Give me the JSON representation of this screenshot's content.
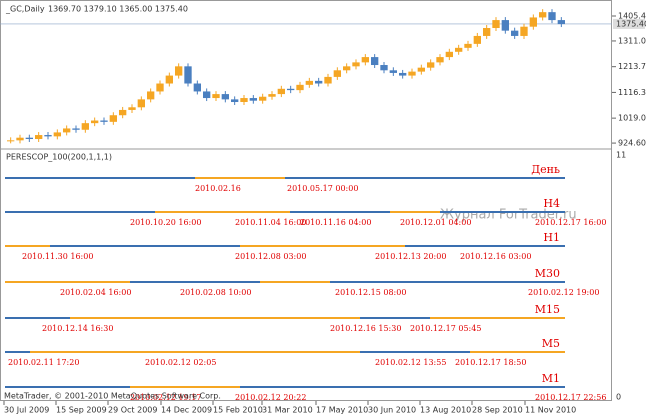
{
  "header": {
    "symbol": "_GC,Daily",
    "ohlc": "1369.70 1379.10 1365.00 1375.40"
  },
  "chart_data": {
    "type": "candles",
    "ylim": [
      906,
      1466
    ],
    "yticks": [
      {
        "value": 1405.45,
        "label": "1405.45"
      },
      {
        "value": 1311.05,
        "label": "1311.05"
      },
      {
        "value": 1213.7,
        "label": "1213.70"
      },
      {
        "value": 1116.35,
        "label": "1116.35"
      },
      {
        "value": 1019,
        "label": "1019.00"
      },
      {
        "value": 924.6,
        "label": "924.60"
      }
    ],
    "current": {
      "value": 1375.4,
      "label": "1375.40"
    },
    "values": [
      935,
      945,
      940,
      955,
      950,
      965,
      980,
      975,
      1000,
      1010,
      1005,
      1030,
      1050,
      1060,
      1090,
      1120,
      1150,
      1180,
      1215,
      1150,
      1120,
      1095,
      1110,
      1090,
      1080,
      1095,
      1085,
      1100,
      1110,
      1130,
      1125,
      1145,
      1160,
      1150,
      1175,
      1200,
      1215,
      1230,
      1250,
      1220,
      1200,
      1190,
      1180,
      1195,
      1210,
      1230,
      1250,
      1270,
      1285,
      1300,
      1330,
      1360,
      1390,
      1350,
      1330,
      1365,
      1400,
      1420,
      1390,
      1375
    ],
    "up_color": "#f5a623",
    "down_color": "#4a7fc0",
    "xlabels": [
      "30 Jul 2009",
      "15 Sep 2009",
      "29 Oct 2009",
      "14 Dec 2009",
      "15 Feb 2010",
      "31 Mar 2010",
      "17 May 2010",
      "30 Jun 2010",
      "13 Aug 2010",
      "28 Sep 2010",
      "11 Nov 2010"
    ]
  },
  "indicator": {
    "title": "PERESCOP_100(200,1,1,1)",
    "top_label": "11",
    "bottom_label": "0",
    "rows": [
      {
        "label": "День",
        "dates": [
          "2010.02.16",
          "2010.05.17 00:00"
        ]
      },
      {
        "label": "H4",
        "dates": [
          "2010.10.20 16:00",
          "2010.11.04 16:00",
          "2010.11.16 04:00",
          "2010.12.01 04:00",
          "2010.12.17 16:00"
        ]
      },
      {
        "label": "H1",
        "dates": [
          "2010.11.30 16:00",
          "2010.12.08 03:00",
          "2010.12.13 20:00",
          "2010.12.16 03:00"
        ]
      },
      {
        "label": "M30",
        "dates": [
          "2010.02.04 16:00",
          "2010.02.08 10:00",
          "2010.12.15 08:00",
          "2010.02.12 19:00"
        ]
      },
      {
        "label": "M15",
        "dates": [
          "2010.12.14 16:30",
          "2010.12.16 15:30",
          "2010.12.17 05:45"
        ]
      },
      {
        "label": "M5",
        "dates": [
          "2010.02.11 17:20",
          "2010.02.12 02:05",
          "2010.02.12 13:55",
          "2010.12.17 18:50"
        ]
      },
      {
        "label": "M1",
        "dates": [
          "2010.02.12 19:17",
          "2010.02.12 20:22",
          "2010.12.17 22:56"
        ]
      }
    ]
  },
  "footer": "MetaTrader, © 2001-2010 MetaQuotes Software Corp.",
  "watermark": "Журнал ForTrader.ru"
}
